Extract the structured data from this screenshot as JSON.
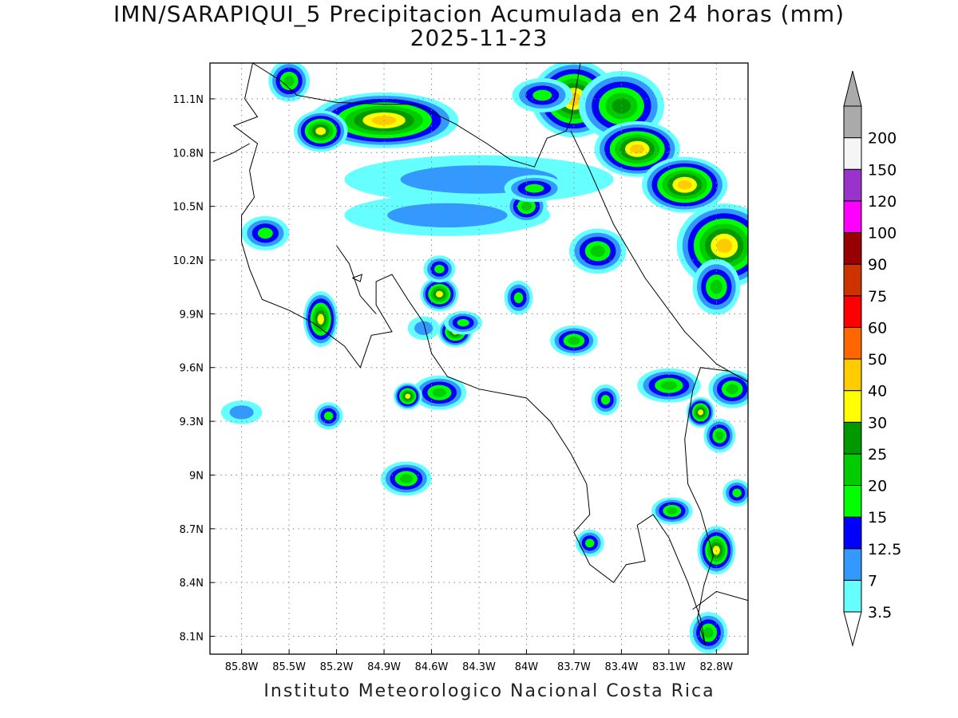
{
  "title": {
    "line1": "IMN/SARAPIQUI_5 Precipitacion Acumulada en 24 horas (mm)",
    "line2": "2025-11-23"
  },
  "footer": "Instituto Meteorologico Nacional Costa Rica",
  "map": {
    "lon_range": [
      -86.0,
      -82.6
    ],
    "lat_range": [
      8.0,
      11.3
    ],
    "x_ticks": [
      {
        "lon": -85.8,
        "label": "85.8W"
      },
      {
        "lon": -85.5,
        "label": "85.5W"
      },
      {
        "lon": -85.2,
        "label": "85.2W"
      },
      {
        "lon": -84.9,
        "label": "84.9W"
      },
      {
        "lon": -84.6,
        "label": "84.6W"
      },
      {
        "lon": -84.3,
        "label": "84.3W"
      },
      {
        "lon": -84.0,
        "label": "84W"
      },
      {
        "lon": -83.7,
        "label": "83.7W"
      },
      {
        "lon": -83.4,
        "label": "83.4W"
      },
      {
        "lon": -83.1,
        "label": "83.1W"
      },
      {
        "lon": -82.8,
        "label": "82.8W"
      }
    ],
    "y_ticks": [
      {
        "lat": 11.1,
        "label": "11.1N"
      },
      {
        "lat": 10.8,
        "label": "10.8N"
      },
      {
        "lat": 10.5,
        "label": "10.5N"
      },
      {
        "lat": 10.2,
        "label": "10.2N"
      },
      {
        "lat": 9.9,
        "label": "9.9N"
      },
      {
        "lat": 9.6,
        "label": "9.6N"
      },
      {
        "lat": 9.3,
        "label": "9.3N"
      },
      {
        "lat": 9.0,
        "label": "9N"
      },
      {
        "lat": 8.7,
        "label": "8.7N"
      },
      {
        "lat": 8.4,
        "label": "8.4N"
      },
      {
        "lat": 8.1,
        "label": "8.1N"
      }
    ]
  },
  "colorbar": {
    "levels": [
      {
        "label": "3.5",
        "color": "#66ffff"
      },
      {
        "label": "7",
        "color": "#3399ff"
      },
      {
        "label": "12.5",
        "color": "#0000ff"
      },
      {
        "label": "15",
        "color": "#00ff00"
      },
      {
        "label": "20",
        "color": "#00cc00"
      },
      {
        "label": "25",
        "color": "#009900"
      },
      {
        "label": "30",
        "color": "#ffff00"
      },
      {
        "label": "40",
        "color": "#ffcc00"
      },
      {
        "label": "50",
        "color": "#ff6600"
      },
      {
        "label": "60",
        "color": "#ff0000"
      },
      {
        "label": "75",
        "color": "#cc3300"
      },
      {
        "label": "90",
        "color": "#990000"
      },
      {
        "label": "100",
        "color": "#ff00ff"
      },
      {
        "label": "120",
        "color": "#9933cc"
      },
      {
        "label": "150",
        "color": "#f5f5f5"
      },
      {
        "label": "200",
        "color": "#aaaaaa"
      }
    ]
  },
  "rain_cells": [
    {
      "lon": -84.9,
      "lat": 10.98,
      "rx": 0.42,
      "ry": 0.12,
      "peak": 40
    },
    {
      "lon": -85.3,
      "lat": 10.92,
      "rx": 0.12,
      "ry": 0.08,
      "peak": 30
    },
    {
      "lon": -85.5,
      "lat": 11.2,
      "rx": 0.08,
      "ry": 0.08,
      "peak": 20
    },
    {
      "lon": -84.3,
      "lat": 10.65,
      "rx": 0.8,
      "ry": 0.1,
      "peak": 10
    },
    {
      "lon": -84.5,
      "lat": 10.45,
      "rx": 0.6,
      "ry": 0.08,
      "peak": 10
    },
    {
      "lon": -83.7,
      "lat": 11.1,
      "rx": 0.22,
      "ry": 0.18,
      "peak": 40
    },
    {
      "lon": -83.4,
      "lat": 11.06,
      "rx": 0.22,
      "ry": 0.16,
      "peak": 25
    },
    {
      "lon": -83.3,
      "lat": 10.82,
      "rx": 0.22,
      "ry": 0.12,
      "peak": 40
    },
    {
      "lon": -83.0,
      "lat": 10.62,
      "rx": 0.22,
      "ry": 0.12,
      "peak": 40
    },
    {
      "lon": -82.75,
      "lat": 10.28,
      "rx": 0.25,
      "ry": 0.2,
      "peak": 40
    },
    {
      "lon": -82.8,
      "lat": 10.05,
      "rx": 0.1,
      "ry": 0.12,
      "peak": 20
    },
    {
      "lon": -83.55,
      "lat": 10.25,
      "rx": 0.13,
      "ry": 0.09,
      "peak": 20
    },
    {
      "lon": -84.0,
      "lat": 10.5,
      "rx": 0.08,
      "ry": 0.06,
      "peak": 20
    },
    {
      "lon": -85.65,
      "lat": 10.35,
      "rx": 0.1,
      "ry": 0.06,
      "peak": 15
    },
    {
      "lon": -85.3,
      "lat": 9.87,
      "rx": 0.06,
      "ry": 0.12,
      "peak": 30
    },
    {
      "lon": -84.55,
      "lat": 10.01,
      "rx": 0.07,
      "ry": 0.06,
      "peak": 30
    },
    {
      "lon": -84.55,
      "lat": 10.15,
      "rx": 0.05,
      "ry": 0.04,
      "peak": 15
    },
    {
      "lon": -84.45,
      "lat": 9.8,
      "rx": 0.06,
      "ry": 0.05,
      "peak": 30
    },
    {
      "lon": -84.55,
      "lat": 9.46,
      "rx": 0.12,
      "ry": 0.06,
      "peak": 20
    },
    {
      "lon": -84.75,
      "lat": 9.44,
      "rx": 0.04,
      "ry": 0.04,
      "peak": 30
    },
    {
      "lon": -84.76,
      "lat": 8.98,
      "rx": 0.11,
      "ry": 0.06,
      "peak": 20
    },
    {
      "lon": -83.7,
      "lat": 9.75,
      "rx": 0.1,
      "ry": 0.05,
      "peak": 20
    },
    {
      "lon": -83.1,
      "lat": 9.5,
      "rx": 0.15,
      "ry": 0.06,
      "peak": 20
    },
    {
      "lon": -82.7,
      "lat": 9.48,
      "rx": 0.1,
      "ry": 0.07,
      "peak": 20
    },
    {
      "lon": -82.9,
      "lat": 9.35,
      "rx": 0.04,
      "ry": 0.05,
      "peak": 30
    },
    {
      "lon": -82.78,
      "lat": 9.22,
      "rx": 0.05,
      "ry": 0.06,
      "peak": 20
    },
    {
      "lon": -82.67,
      "lat": 8.9,
      "rx": 0.04,
      "ry": 0.04,
      "peak": 15
    },
    {
      "lon": -83.08,
      "lat": 8.8,
      "rx": 0.08,
      "ry": 0.04,
      "peak": 20
    },
    {
      "lon": -82.8,
      "lat": 8.58,
      "rx": 0.07,
      "ry": 0.1,
      "peak": 30
    },
    {
      "lon": -82.85,
      "lat": 8.12,
      "rx": 0.07,
      "ry": 0.08,
      "peak": 20
    },
    {
      "lon": -84.05,
      "lat": 9.99,
      "rx": 0.04,
      "ry": 0.06,
      "peak": 15
    },
    {
      "lon": -83.5,
      "lat": 9.42,
      "rx": 0.04,
      "ry": 0.05,
      "peak": 15
    },
    {
      "lon": -85.25,
      "lat": 9.33,
      "rx": 0.04,
      "ry": 0.04,
      "peak": 15
    },
    {
      "lon": -83.6,
      "lat": 8.62,
      "rx": 0.04,
      "ry": 0.04,
      "peak": 15
    },
    {
      "lon": -85.8,
      "lat": 9.35,
      "rx": 0.08,
      "ry": 0.03,
      "peak": 7
    },
    {
      "lon": -84.65,
      "lat": 9.82,
      "rx": 0.05,
      "ry": 0.03,
      "peak": 7
    },
    {
      "lon": -83.9,
      "lat": 11.12,
      "rx": 0.14,
      "ry": 0.06,
      "peak": 15
    },
    {
      "lon": -83.95,
      "lat": 10.6,
      "rx": 0.14,
      "ry": 0.04,
      "peak": 15
    },
    {
      "lon": -84.4,
      "lat": 9.85,
      "rx": 0.07,
      "ry": 0.03,
      "peak": 15
    }
  ]
}
